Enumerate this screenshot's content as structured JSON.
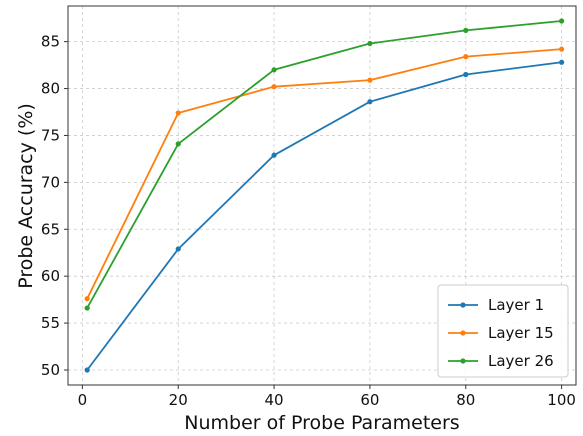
{
  "chart_data": {
    "type": "line",
    "title": "",
    "xlabel": "Number of Probe Parameters",
    "ylabel": "Probe Accuracy (%)",
    "xlim": [
      -3,
      103
    ],
    "ylim": [
      48.4,
      88.8
    ],
    "xticks": [
      0,
      20,
      40,
      60,
      80,
      100
    ],
    "yticks": [
      50,
      55,
      60,
      65,
      70,
      75,
      80,
      85
    ],
    "grid": true,
    "legend_position": "bottom-right",
    "x": [
      1,
      20,
      40,
      60,
      80,
      100
    ],
    "series": [
      {
        "name": "Layer 1",
        "color": "#1f77b4",
        "values": [
          50.0,
          62.9,
          72.9,
          78.6,
          81.5,
          82.8
        ]
      },
      {
        "name": "Layer 15",
        "color": "#ff7f0e",
        "values": [
          57.6,
          77.4,
          80.2,
          80.9,
          83.4,
          84.2
        ]
      },
      {
        "name": "Layer 26",
        "color": "#2ca02c",
        "values": [
          56.6,
          74.1,
          82.0,
          84.8,
          86.2,
          87.2
        ]
      }
    ]
  }
}
